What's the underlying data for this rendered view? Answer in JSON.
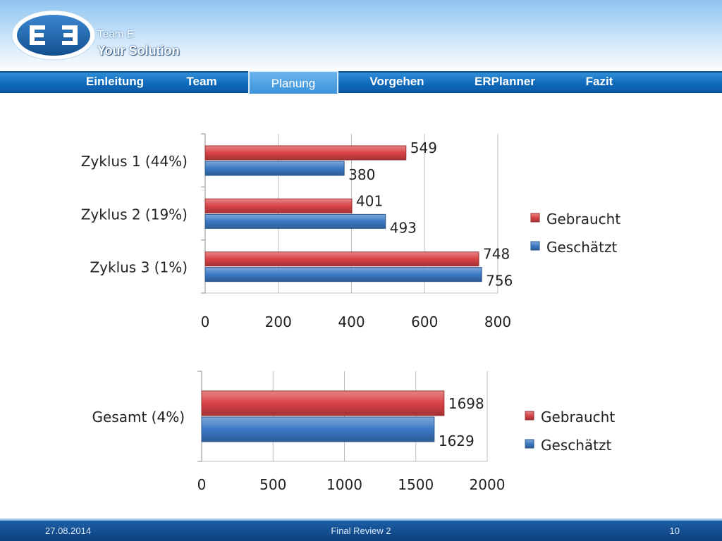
{
  "brand": {
    "team": "Team E",
    "solution": "Your Solution",
    "logo_icon": "ee-logo-icon",
    "color_dark": "#1a5d9e",
    "color_light": "#ffffff"
  },
  "nav": {
    "items": [
      {
        "label": "Einleitung",
        "active": false
      },
      {
        "label": "Team",
        "active": false
      },
      {
        "label": "Planung",
        "active": true
      },
      {
        "label": "Vorgehen",
        "active": false
      },
      {
        "label": "ERPlanner",
        "active": false
      },
      {
        "label": "Fazit",
        "active": false
      }
    ]
  },
  "chart_data": [
    {
      "type": "bar",
      "orientation": "horizontal",
      "categories": [
        "Zyklus 1 (44%)",
        "Zyklus 2 (19%)",
        "Zyklus 3 (1%)"
      ],
      "series": [
        {
          "name": "Gebraucht",
          "values": [
            549,
            401,
            748
          ],
          "color": "#d94346"
        },
        {
          "name": "Geschätzt",
          "values": [
            380,
            493,
            756
          ],
          "color": "#3c79c6"
        }
      ],
      "xlim": [
        0,
        800
      ],
      "xticks": [
        "0",
        "200",
        "400",
        "600",
        "800"
      ],
      "grid": true,
      "legend": "right"
    },
    {
      "type": "bar",
      "orientation": "horizontal",
      "categories": [
        "Gesamt (4%)"
      ],
      "series": [
        {
          "name": "Gebraucht",
          "values": [
            1698
          ],
          "color": "#d94346"
        },
        {
          "name": "Geschätzt",
          "values": [
            1629
          ],
          "color": "#3c79c6"
        }
      ],
      "xlim": [
        0,
        2000
      ],
      "xticks": [
        "0",
        "500",
        "1000",
        "1500",
        "2000"
      ],
      "grid": true,
      "legend": "right"
    }
  ],
  "footer": {
    "date": "27.08.2014",
    "title": "Final Review 2",
    "page": "10"
  }
}
